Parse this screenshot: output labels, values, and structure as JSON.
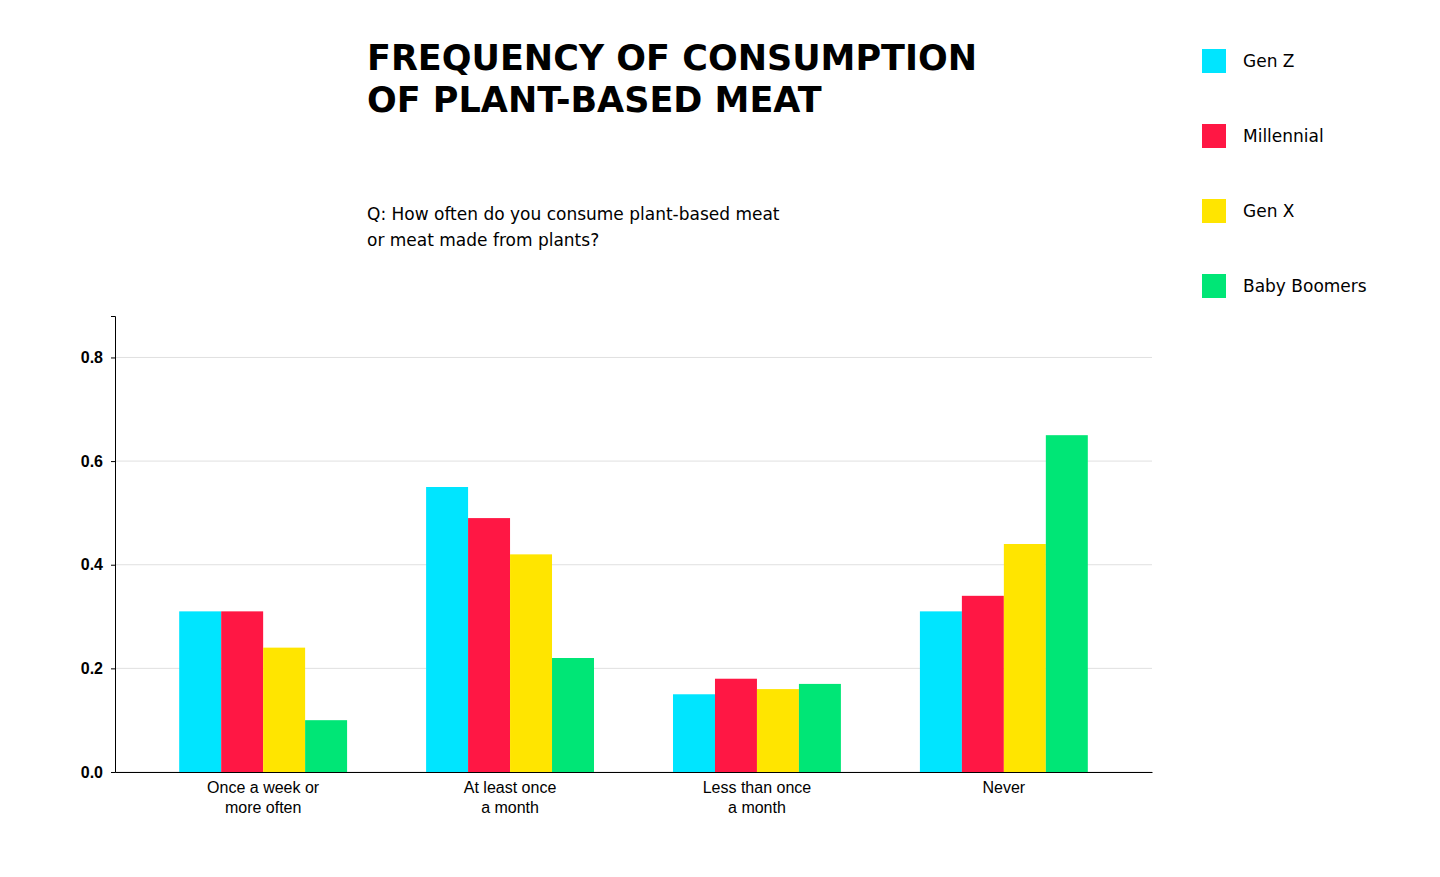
{
  "chart_data": {
    "type": "bar",
    "title": "FREQUENCY OF CONSUMPTION\nOF PLANT-BASED MEAT",
    "subtitle": "Q: How often do you consume plant-based meat\nor meat made from plants?",
    "categories": [
      "Once a week or\nmore often",
      "At least once\na month",
      "Less than once\na month",
      "Never"
    ],
    "series": [
      {
        "name": "Gen Z",
        "color": "#00E5FF",
        "values": [
          0.31,
          0.55,
          0.15,
          0.31
        ]
      },
      {
        "name": "Millennial",
        "color": "#FF1744",
        "values": [
          0.31,
          0.49,
          0.18,
          0.34
        ]
      },
      {
        "name": "Gen X",
        "color": "#FFE500",
        "values": [
          0.24,
          0.42,
          0.16,
          0.44
        ]
      },
      {
        "name": "Baby Boomers",
        "color": "#00E676",
        "values": [
          0.1,
          0.22,
          0.17,
          0.65
        ]
      }
    ],
    "ylim": [
      0.0,
      0.88
    ],
    "yticks": [
      {
        "value": 0.0,
        "label": "0.0"
      },
      0.2,
      0.4,
      0.6,
      0.8
    ],
    "grid": true,
    "legend": "upper right"
  }
}
